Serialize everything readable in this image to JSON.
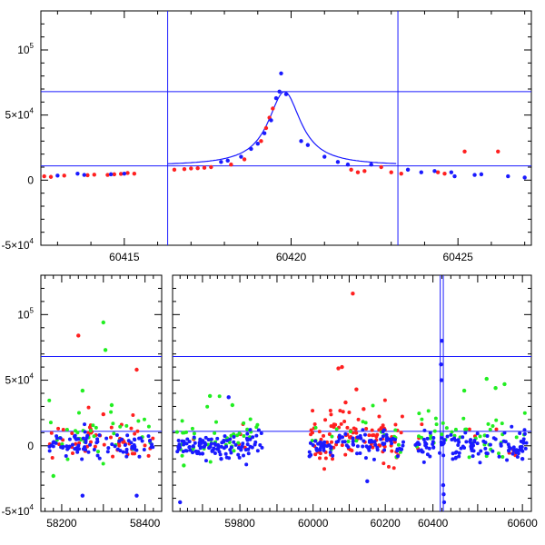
{
  "chart_data": [
    {
      "type": "scatter",
      "panel": "top-zoom",
      "title": "",
      "xlabel": "",
      "ylabel": "",
      "xlim": [
        60412.5,
        60427.2
      ],
      "ylim": [
        -50000,
        130000
      ],
      "xticks_major": [
        60415,
        60420,
        60425
      ],
      "x_tick_labels": [
        "60415",
        "60420",
        "60425"
      ],
      "yticks_major": [
        -50000,
        0,
        50000,
        100000
      ],
      "y_tick_labels": [
        {
          "value": -50000,
          "mantissa": "-5×10",
          "exp": "4"
        },
        {
          "value": 0,
          "mantissa": "0",
          "exp": ""
        },
        {
          "value": 50000,
          "mantissa": "5×10",
          "exp": "4"
        },
        {
          "value": 100000,
          "mantissa": "10",
          "exp": "5"
        }
      ],
      "hlines": [
        68000,
        11000
      ],
      "vlines": [
        60416.3,
        60423.2
      ],
      "model": {
        "baseline": 11000,
        "peak": 68000,
        "t0": 60419.8,
        "tE": 0.75
      },
      "series": [
        {
          "color": "#ff2020",
          "points": [
            [
              60412.6,
              3000
            ],
            [
              60412.8,
              2500
            ],
            [
              60413.2,
              3500
            ],
            [
              60413.9,
              3800
            ],
            [
              60414.1,
              4200
            ],
            [
              60414.5,
              4000
            ],
            [
              60414.7,
              4500
            ],
            [
              60414.9,
              4800
            ],
            [
              60415.1,
              5500
            ],
            [
              60415.3,
              5000
            ],
            [
              60416.5,
              8000
            ],
            [
              60416.8,
              8500
            ],
            [
              60417.0,
              9000
            ],
            [
              60417.2,
              9200
            ],
            [
              60417.4,
              9500
            ],
            [
              60417.6,
              10000
            ],
            [
              60418.2,
              12000
            ],
            [
              60418.6,
              16000
            ],
            [
              60419.1,
              30000
            ],
            [
              60419.25,
              40000
            ],
            [
              60419.35,
              48000
            ],
            [
              60419.45,
              55000
            ],
            [
              60421.8,
              8000
            ],
            [
              60422.0,
              6000
            ],
            [
              60422.2,
              7000
            ],
            [
              60422.7,
              10000
            ],
            [
              60423.0,
              6000
            ],
            [
              60423.3,
              5000
            ],
            [
              60424.4,
              6000
            ],
            [
              60424.6,
              5000
            ],
            [
              60425.2,
              22000
            ],
            [
              60426.2,
              22000
            ]
          ]
        },
        {
          "color": "#1a1aff",
          "points": [
            [
              60413.0,
              3500
            ],
            [
              60413.6,
              5000
            ],
            [
              60413.8,
              4000
            ],
            [
              60414.6,
              4500
            ],
            [
              60415.0,
              5000
            ],
            [
              60417.9,
              14000
            ],
            [
              60418.1,
              15000
            ],
            [
              60418.5,
              18000
            ],
            [
              60418.8,
              24000
            ],
            [
              60419.0,
              28000
            ],
            [
              60419.2,
              36000
            ],
            [
              60419.4,
              46000
            ],
            [
              60419.55,
              63000
            ],
            [
              60419.65,
              68000
            ],
            [
              60419.7,
              82000
            ],
            [
              60419.85,
              66000
            ],
            [
              60420.3,
              30000
            ],
            [
              60420.5,
              27000
            ],
            [
              60421.0,
              18000
            ],
            [
              60421.4,
              14000
            ],
            [
              60421.7,
              12000
            ],
            [
              60422.4,
              12000
            ],
            [
              60423.5,
              8000
            ],
            [
              60423.9,
              6000
            ],
            [
              60424.3,
              7000
            ],
            [
              60424.8,
              6000
            ],
            [
              60424.9,
              3000
            ],
            [
              60425.5,
              4000
            ],
            [
              60425.7,
              4500
            ],
            [
              60426.5,
              3000
            ],
            [
              60427.0,
              2000
            ]
          ]
        }
      ]
    },
    {
      "type": "scatter",
      "panel": "bottom-full",
      "title": "",
      "xlabel": "",
      "ylabel": "",
      "ylim": [
        -50000,
        130000
      ],
      "segments": [
        {
          "xlim": [
            58150,
            58440
          ],
          "xticks": [
            58200,
            58400
          ]
        },
        {
          "xlim": [
            59620,
            59880
          ],
          "xticks": [
            59800
          ]
        },
        {
          "xlim": [
            59880,
            60270
          ],
          "xticks": [
            60000,
            60200
          ]
        },
        {
          "xlim": [
            60350,
            60620
          ],
          "xticks": [
            60400,
            60600
          ]
        }
      ],
      "x_tick_labels": [
        "58200",
        "58400",
        "59800",
        "60000",
        "60200",
        "60400",
        "60600"
      ],
      "yticks_major": [
        -50000,
        0,
        50000,
        100000
      ],
      "y_tick_labels": [
        {
          "value": -50000,
          "mantissa": "-5×10",
          "exp": "4"
        },
        {
          "value": 0,
          "mantissa": "0",
          "exp": ""
        },
        {
          "value": 50000,
          "mantissa": "5×10",
          "exp": "4"
        },
        {
          "value": 100000,
          "mantissa": "10",
          "exp": "5"
        }
      ],
      "hlines": [
        68000,
        11000
      ],
      "vlines": [
        60416.3,
        60423.2
      ],
      "clusters": [
        {
          "x": [
            58170,
            58420
          ],
          "red": {
            "n": 55,
            "sd": 6000
          },
          "green": {
            "n": 35,
            "sd": 7000
          },
          "blue": {
            "n": 90,
            "sd": 5000
          }
        },
        {
          "x": [
            59630,
            59860
          ],
          "red": {
            "n": 5,
            "sd": 6000
          },
          "green": {
            "n": 45,
            "sd": 7000
          },
          "blue": {
            "n": 110,
            "sd": 5000
          }
        },
        {
          "x": [
            59990,
            60250
          ],
          "red": {
            "n": 110,
            "sd": 9000
          },
          "green": {
            "n": 20,
            "sd": 6000
          },
          "blue": {
            "n": 90,
            "sd": 4500
          }
        },
        {
          "x": [
            60360,
            60610
          ],
          "red": {
            "n": 10,
            "sd": 5000
          },
          "green": {
            "n": 45,
            "sd": 7000
          },
          "blue": {
            "n": 120,
            "sd": 6000
          }
        }
      ],
      "outliers": [
        {
          "color": "#ff2020",
          "points": [
            [
              58240,
              84000
            ],
            [
              58380,
              58000
            ],
            [
              58300,
              24000
            ],
            [
              60110,
              116000
            ],
            [
              60080,
              60000
            ],
            [
              60070,
              59000
            ],
            [
              60120,
              43000
            ],
            [
              60090,
              33000
            ],
            [
              60140,
              28000
            ]
          ]
        },
        {
          "color": "#22ee22",
          "points": [
            [
              58300,
              94000
            ],
            [
              58305,
              73000
            ],
            [
              58250,
              42000
            ],
            [
              58320,
              31000
            ],
            [
              59720,
              38000
            ],
            [
              59780,
              31000
            ],
            [
              60520,
              51000
            ],
            [
              60540,
              44000
            ],
            [
              60560,
              47000
            ],
            [
              60470,
              42000
            ],
            [
              58180,
              -23000
            ],
            [
              59650,
              -15000
            ]
          ]
        },
        {
          "color": "#1a1aff",
          "points": [
            [
              59750,
              -10000
            ],
            [
              59770,
              37000
            ],
            [
              58250,
              -38000
            ],
            [
              58380,
              -38000
            ],
            [
              59640,
              -43000
            ],
            [
              60420,
              80000
            ],
            [
              60418,
              62000
            ],
            [
              60419,
              50000
            ],
            [
              60423,
              -30000
            ],
            [
              60424,
              -37000
            ],
            [
              60425,
              -43000
            ],
            [
              59990,
              -8000
            ],
            [
              60150,
              -27000
            ],
            [
              60600,
              -10000
            ],
            [
              59700,
              -6000
            ]
          ]
        }
      ]
    }
  ]
}
